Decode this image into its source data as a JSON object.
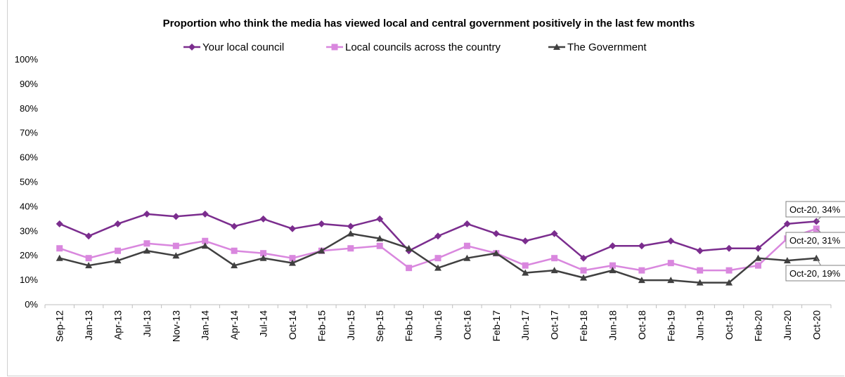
{
  "chart_data": {
    "type": "line",
    "title": "Proportion who think the media has viewed local and central government  positively in the last few months",
    "xlabel": "",
    "ylabel": "",
    "ylim": [
      0,
      100
    ],
    "yticks": [
      "0%",
      "10%",
      "20%",
      "30%",
      "40%",
      "50%",
      "60%",
      "70%",
      "80%",
      "90%",
      "100%"
    ],
    "legend_position": "top-center",
    "grid": false,
    "categories": [
      "Sep-12",
      "Jan-13",
      "Apr-13",
      "Jul-13",
      "Nov-13",
      "Jan-14",
      "Apr-14",
      "Jul-14",
      "Oct-14",
      "Feb-15",
      "Jun-15",
      "Sep-15",
      "Feb-16",
      "Jun-16",
      "Oct-16",
      "Feb-17",
      "Jun-17",
      "Oct-17",
      "Feb-18",
      "Jun-18",
      "Oct-18",
      "Feb-19",
      "Jun-19",
      "Oct-19",
      "Feb-20",
      "Jun-20",
      "Oct-20"
    ],
    "series": [
      {
        "name": "Your local council",
        "color": "#7b2d8e",
        "marker": "diamond",
        "values": [
          33,
          28,
          33,
          37,
          36,
          37,
          32,
          35,
          31,
          33,
          32,
          35,
          22,
          28,
          33,
          29,
          26,
          29,
          19,
          24,
          24,
          26,
          22,
          23,
          23,
          33,
          34
        ]
      },
      {
        "name": "Local councils across the country",
        "color": "#d987de",
        "marker": "square",
        "values": [
          23,
          19,
          22,
          25,
          24,
          26,
          22,
          21,
          19,
          22,
          23,
          24,
          15,
          19,
          24,
          21,
          16,
          19,
          14,
          16,
          14,
          17,
          14,
          14,
          16,
          27,
          31
        ]
      },
      {
        "name": "The Government",
        "color": "#404040",
        "marker": "triangle",
        "values": [
          19,
          16,
          18,
          22,
          20,
          24,
          16,
          19,
          17,
          22,
          29,
          27,
          23,
          15,
          19,
          21,
          13,
          14,
          11,
          14,
          10,
          10,
          9,
          9,
          19,
          18,
          19
        ]
      }
    ],
    "annotations": [
      {
        "series": 0,
        "index": 26,
        "text": "Oct-20, 34%"
      },
      {
        "series": 1,
        "index": 26,
        "text": "Oct-20, 31%"
      },
      {
        "series": 2,
        "index": 26,
        "text": "Oct-20, 19%"
      }
    ]
  }
}
